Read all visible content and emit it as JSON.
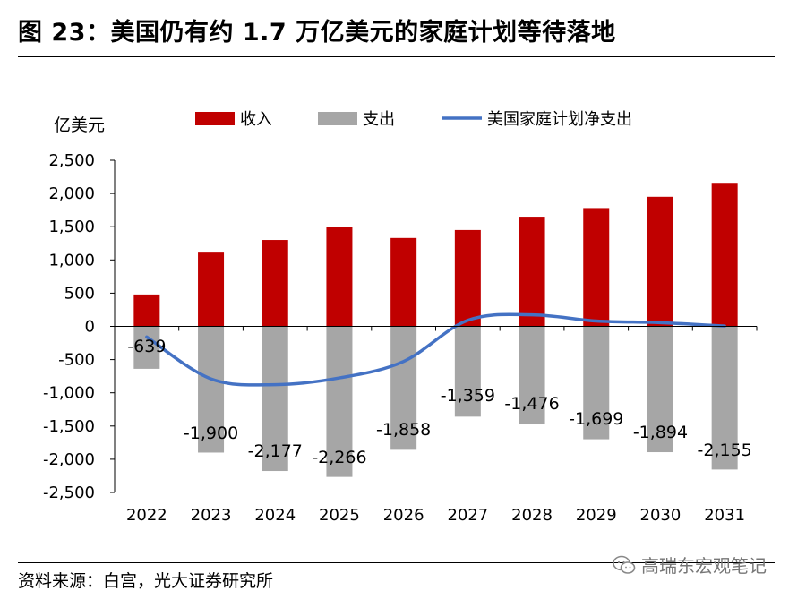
{
  "page": {
    "title": "图 23：美国仍有约 1.7 万亿美元的家庭计划等待落地",
    "source": "资料来源：白宫，光大证券研究所",
    "watermark": "高瑞东宏观笔记"
  },
  "colors": {
    "income": "#c00000",
    "expense": "#a6a6a6",
    "net": "#4472c4"
  },
  "chart_data": {
    "type": "bar",
    "title": "",
    "ylabel": "亿美元",
    "xlabel": "",
    "ylim": [
      -2500,
      2500
    ],
    "yticks": [
      2500,
      2000,
      1500,
      1000,
      500,
      0,
      -500,
      -1000,
      -1500,
      -2000,
      -2500
    ],
    "ytick_labels": [
      "2,500",
      "2,000",
      "1,500",
      "1,000",
      "500",
      "0",
      "-500",
      "-1,000",
      "-1,500",
      "-2,000",
      "-2,500"
    ],
    "categories": [
      "2022",
      "2023",
      "2024",
      "2025",
      "2026",
      "2027",
      "2028",
      "2029",
      "2030",
      "2031"
    ],
    "legend_position": "top",
    "series": [
      {
        "name": "收入",
        "kind": "bar",
        "values": [
          480,
          1110,
          1300,
          1490,
          1330,
          1450,
          1650,
          1780,
          1950,
          2160
        ]
      },
      {
        "name": "支出",
        "kind": "bar",
        "values": [
          -639,
          -1900,
          -2177,
          -2266,
          -1858,
          -1359,
          -1476,
          -1699,
          -1894,
          -2155
        ]
      },
      {
        "name": "美国家庭计划净支出",
        "kind": "line",
        "values": [
          -159,
          -790,
          -877,
          -776,
          -528,
          91,
          174,
          81,
          56,
          5
        ]
      }
    ],
    "data_labels": [
      "-639",
      "-1,900",
      "-2,177",
      "-2,266",
      "-1,858",
      "-1,359",
      "-1,476",
      "-1,699",
      "-1,894",
      "-2,155"
    ]
  }
}
